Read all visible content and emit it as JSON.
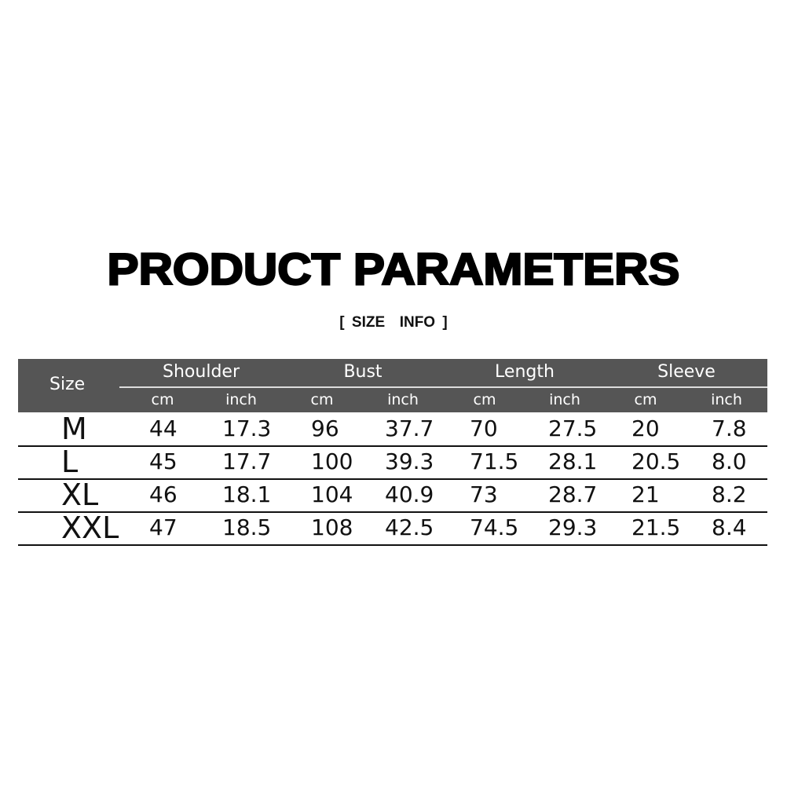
{
  "title": "PRODUCT PARAMETERS",
  "subtitle": "[ SIZE  INFO ]",
  "table": {
    "size_header": "Size",
    "groups": [
      "Shoulder",
      "Bust",
      "Length",
      "Sleeve"
    ],
    "units": [
      "cm",
      "inch",
      "cm",
      "inch",
      "cm",
      "inch",
      "cm",
      "inch"
    ],
    "rows": [
      {
        "size": "M",
        "values": [
          "44",
          "17.3",
          "96",
          "37.7",
          "70",
          "27.5",
          "20",
          "7.8"
        ]
      },
      {
        "size": "L",
        "values": [
          "45",
          "17.7",
          "100",
          "39.3",
          "71.5",
          "28.1",
          "20.5",
          "8.0"
        ]
      },
      {
        "size": "XL",
        "values": [
          "46",
          "18.1",
          "104",
          "40.9",
          "73",
          "28.7",
          "21",
          "8.2"
        ]
      },
      {
        "size": "XXL",
        "values": [
          "47",
          "18.5",
          "108",
          "42.5",
          "74.5",
          "29.3",
          "21.5",
          "8.4"
        ]
      }
    ]
  },
  "colors": {
    "header_bg": "#555555",
    "header_text": "#ffffff"
  }
}
